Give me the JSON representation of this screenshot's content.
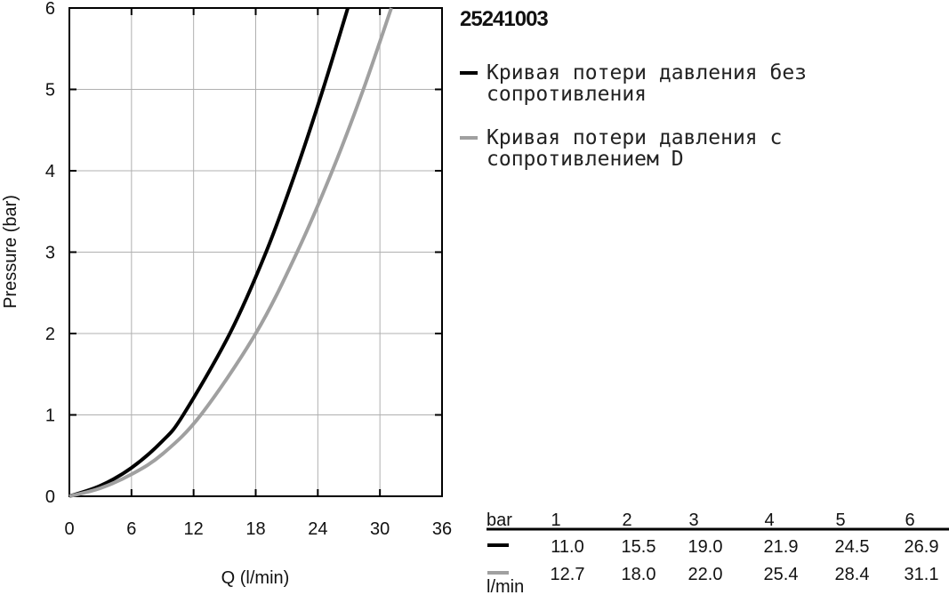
{
  "chart_data": {
    "type": "line",
    "title": "25241003",
    "x_label": "Q (l/min)",
    "y_label": "Pressure (bar)",
    "xlim": [
      0,
      36
    ],
    "xticks": [
      0,
      6,
      12,
      18,
      24,
      30,
      36
    ],
    "ylim": [
      0,
      6
    ],
    "yticks": [
      0,
      1,
      2,
      3,
      4,
      5,
      6
    ],
    "grid": true,
    "series": [
      {
        "name": "Кривая потери давления без сопротивления",
        "color": "#000000",
        "x": [
          0,
          3,
          6,
          9,
          11.0,
          15.5,
          19.0,
          21.9,
          24.5,
          26.9
        ],
        "values": [
          0,
          0.13,
          0.35,
          0.68,
          1,
          2,
          3,
          4,
          5,
          6
        ]
      },
      {
        "name": "Кривая потери давления с сопротивлением D",
        "color": "#a0a0a0",
        "x": [
          0,
          3,
          6,
          9,
          12.7,
          18.0,
          22.0,
          25.4,
          28.4,
          31.1
        ],
        "values": [
          0,
          0.1,
          0.27,
          0.52,
          1,
          2,
          3,
          4,
          5,
          6
        ]
      }
    ]
  },
  "table": {
    "header_label": "bar",
    "columns": [
      1,
      2,
      3,
      4,
      5,
      6
    ],
    "unit": "l/min",
    "rows": [
      {
        "color": "#000000",
        "values": [
          "11.0",
          "15.5",
          "19.0",
          "21.9",
          "24.5",
          "26.9"
        ]
      },
      {
        "color": "#a0a0a0",
        "values": [
          "12.7",
          "18.0",
          "22.0",
          "25.4",
          "28.4",
          "31.1"
        ]
      }
    ]
  }
}
